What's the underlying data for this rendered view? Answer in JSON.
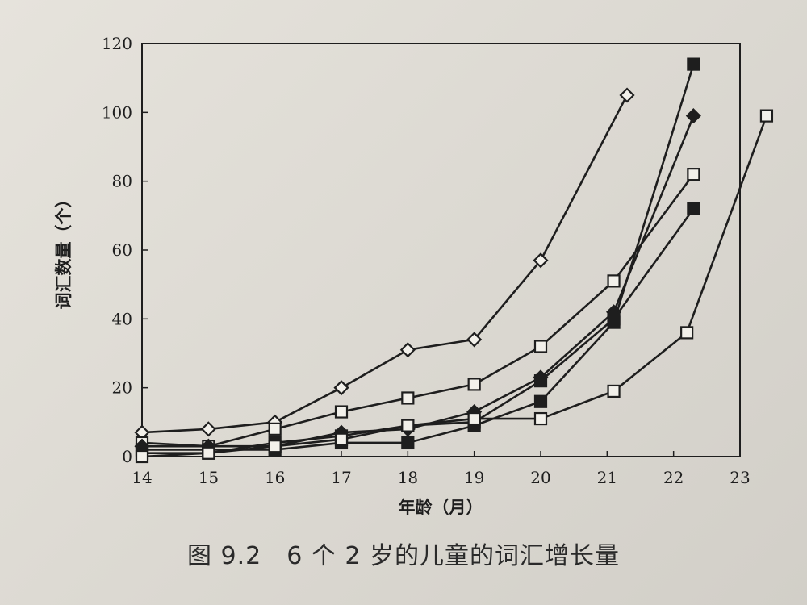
{
  "caption": "图 9.2　6 个 2 岁的儿童的词汇增长量",
  "chart_data": {
    "type": "line",
    "title": "",
    "xlabel": "年龄（月）",
    "ylabel": "词汇数量（个）",
    "xlim": [
      14,
      23
    ],
    "ylim": [
      0,
      120
    ],
    "xticks": [
      14,
      15,
      16,
      17,
      18,
      19,
      20,
      21,
      22,
      23
    ],
    "yticks": [
      0,
      20,
      40,
      60,
      80,
      100,
      120
    ],
    "grid": false,
    "line_color": "#1e1e1e",
    "series": [
      {
        "marker": "open-diamond",
        "points": [
          [
            14,
            7
          ],
          [
            15,
            8
          ],
          [
            16,
            10
          ],
          [
            17,
            20
          ],
          [
            18,
            31
          ],
          [
            19,
            34
          ],
          [
            20,
            57
          ],
          [
            21.3,
            105
          ]
        ]
      },
      {
        "marker": "open-square",
        "points": [
          [
            14,
            4
          ],
          [
            15,
            3
          ],
          [
            16,
            8
          ],
          [
            17,
            13
          ],
          [
            18,
            17
          ],
          [
            19,
            21
          ],
          [
            20,
            32
          ],
          [
            21.1,
            51
          ],
          [
            22.3,
            82
          ]
        ]
      },
      {
        "marker": "filled-diamond",
        "points": [
          [
            14,
            3
          ],
          [
            15,
            3
          ],
          [
            16,
            3
          ],
          [
            17,
            7
          ],
          [
            18,
            8
          ],
          [
            19,
            13
          ],
          [
            20,
            23
          ],
          [
            21.1,
            42
          ],
          [
            22.3,
            99
          ]
        ]
      },
      {
        "marker": "filled-square",
        "points": [
          [
            14,
            2
          ],
          [
            15,
            2
          ],
          [
            16,
            2
          ],
          [
            17,
            4
          ],
          [
            18,
            4
          ],
          [
            19,
            9
          ],
          [
            20,
            16
          ],
          [
            21.1,
            39
          ],
          [
            22.3,
            114
          ]
        ]
      },
      {
        "marker": "filled-square",
        "points": [
          [
            14,
            1
          ],
          [
            15,
            1
          ],
          [
            16,
            4
          ],
          [
            17,
            6
          ],
          [
            18,
            9
          ],
          [
            19,
            10
          ],
          [
            20,
            22
          ],
          [
            21.1,
            40
          ],
          [
            22.3,
            72
          ]
        ]
      },
      {
        "marker": "open-square",
        "points": [
          [
            14,
            0
          ],
          [
            15,
            1
          ],
          [
            16,
            3
          ],
          [
            17,
            5
          ],
          [
            18,
            9
          ],
          [
            19,
            11
          ],
          [
            20,
            11
          ],
          [
            21.1,
            19
          ],
          [
            22.2,
            36
          ],
          [
            23.4,
            99
          ]
        ]
      }
    ]
  }
}
